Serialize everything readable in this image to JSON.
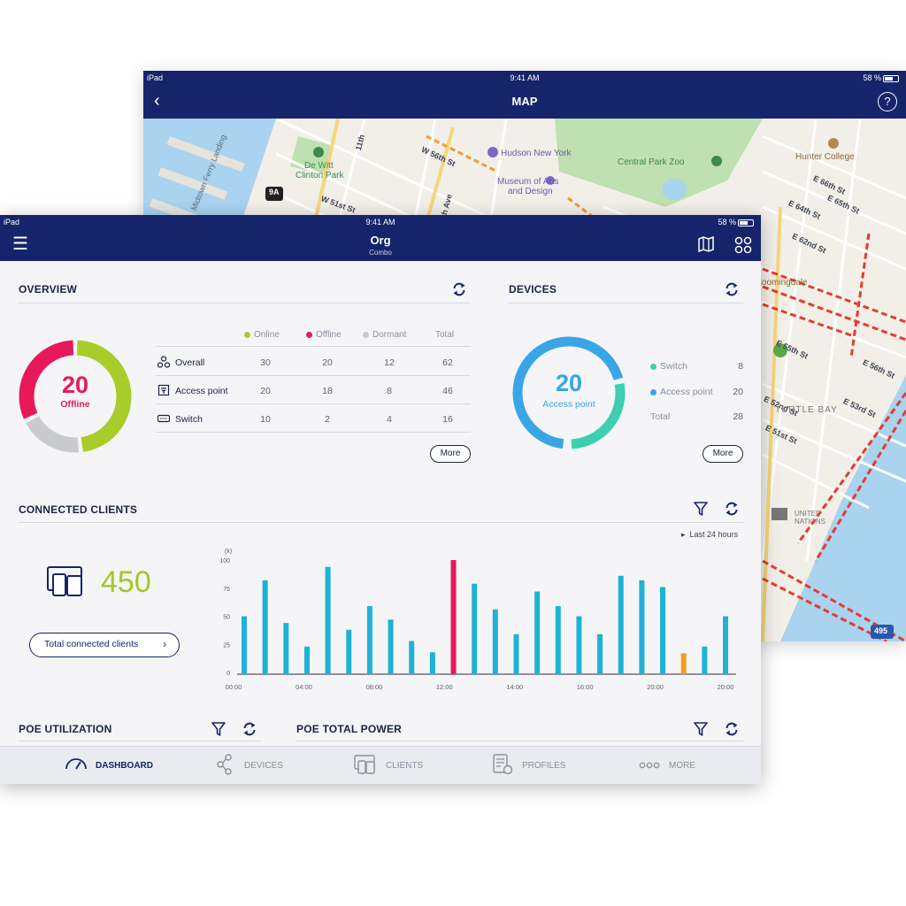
{
  "map": {
    "status": {
      "device": "iPad",
      "time": "9:41 AM",
      "battery": "58 %"
    },
    "title": "MAP",
    "labels": {
      "hudson": "Hudson New York",
      "central_zoo": "Central Park Zoo",
      "hunter": "Hunter College",
      "dewitt_1": "De Witt",
      "dewitt_2": "Clinton Park",
      "moma_1": "Museum of Arts",
      "moma_2": "and Design",
      "w56": "W 56th St",
      "w51": "W 51st St",
      "e66": "E 66th St",
      "e65": "E 65th St",
      "e64": "E 64th St",
      "e62": "E 62nd St",
      "e55": "E 55th St",
      "e56": "E 56th St",
      "e53": "E 53rd St",
      "e52": "E 52nd St",
      "e51": "E 51st St",
      "turtle": "TURTLE BAY",
      "un_1": "UNITED",
      "un_2": "NATIONS",
      "bloomingdale": "Bloomingdale",
      "eleventh": "11th",
      "ninth": "9th Ave",
      "exit": "9A",
      "shield": "495",
      "ferry": "Midtown Ferry Landing"
    }
  },
  "dash": {
    "status": {
      "device": "iPad",
      "time": "9:41 AM",
      "battery": "58 %"
    },
    "nav": {
      "title": "Org",
      "subtitle": "Combo"
    },
    "overview": {
      "title": "OVERVIEW",
      "donut_value": "20",
      "donut_label": "Offline",
      "headers": {
        "online": "Online",
        "offline": "Offline",
        "dormant": "Dormant",
        "total": "Total"
      },
      "rows": [
        {
          "label": "Overall",
          "online": "30",
          "offline": "20",
          "dormant": "12",
          "total": "62"
        },
        {
          "label": "Access point",
          "online": "20",
          "offline": "18",
          "dormant": "8",
          "total": "46"
        },
        {
          "label": "Switch",
          "online": "10",
          "offline": "2",
          "dormant": "4",
          "total": "16"
        }
      ],
      "more": "More",
      "segments": {
        "online": 30,
        "offline": 20,
        "dormant": 12
      }
    },
    "devices": {
      "title": "DEVICES",
      "donut_value": "20",
      "donut_label": "Access point",
      "items": [
        {
          "label": "Switch",
          "value": "8"
        },
        {
          "label": "Access point",
          "value": "20"
        },
        {
          "label": "Total",
          "value": "28"
        }
      ],
      "more": "More",
      "segments": {
        "switch": 8,
        "access_point": 20
      }
    },
    "clients": {
      "title": "CONNECTED CLIENTS",
      "count": "450",
      "button": "Total connected clients",
      "range": "Last 24 hours"
    },
    "poe_util": {
      "title": "POE UTILIZATION"
    },
    "poe_power": {
      "title": "POE TOTAL POWER"
    },
    "tabs": [
      {
        "label": "DASHBOARD",
        "active": true
      },
      {
        "label": "DEVICES",
        "active": false
      },
      {
        "label": "CLIENTS",
        "active": false
      },
      {
        "label": "PROFILES",
        "active": false
      },
      {
        "label": "MORE",
        "active": false
      }
    ],
    "colors": {
      "navy": "#16246b",
      "online": "#a8cc2a",
      "offline": "#e8195a",
      "dormant": "#c9cacf",
      "switch": "#3cd0b0",
      "access_point": "#38a5e6",
      "bar": "#1eb2d6",
      "bar_peak": "#e8195a",
      "bar_low": "#f39c1f"
    }
  },
  "chart_data": {
    "type": "bar",
    "ylabel": "(k)",
    "ylim": [
      0,
      100
    ],
    "yticks": [
      "0",
      "25",
      "50",
      "75",
      "100"
    ],
    "xticks": [
      "00:00",
      "04:00",
      "08:00",
      "12:00",
      "14:00",
      "16:00",
      "20:00",
      "20:00"
    ],
    "values": [
      50,
      82,
      44,
      23,
      94,
      38,
      59,
      47,
      28,
      18,
      100,
      79,
      56,
      34,
      72,
      59,
      50,
      34,
      86,
      82,
      76,
      17,
      23,
      50
    ],
    "highlight": {
      "10": "peak",
      "21": "low"
    }
  }
}
